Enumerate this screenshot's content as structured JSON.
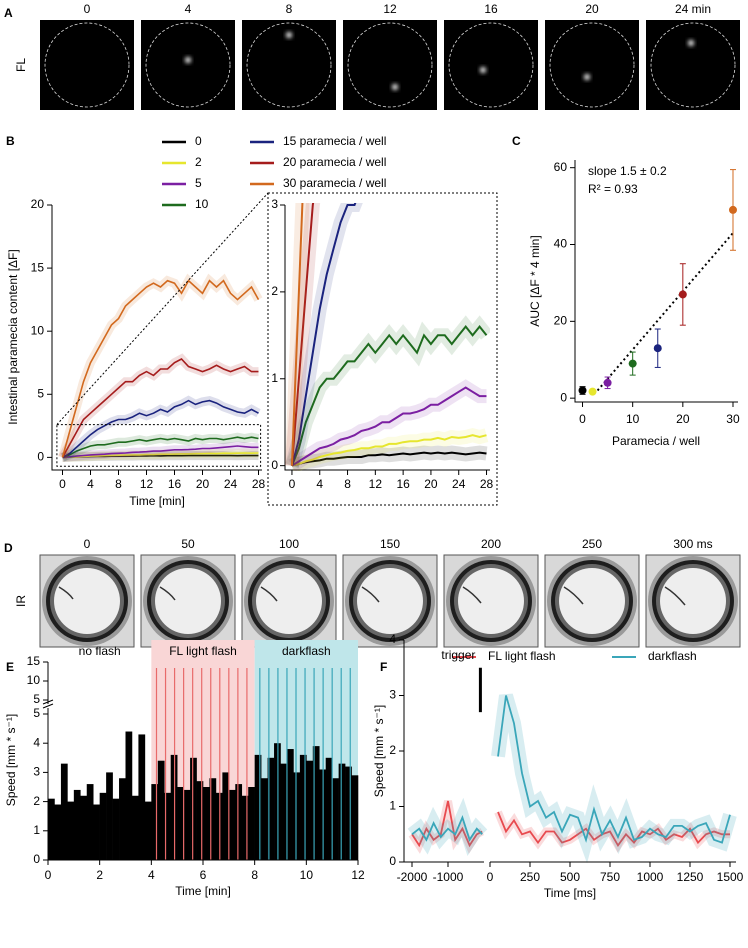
{
  "image_strips": [
    {
      "panel": "A",
      "row_label": "FL",
      "times": [
        "0",
        "4",
        "8",
        "12",
        "16",
        "20",
        "24 min"
      ]
    },
    {
      "panel": "D",
      "row_label": "IR",
      "times": [
        "0",
        "50",
        "100",
        "150",
        "200",
        "250",
        "300 ms"
      ]
    }
  ],
  "chart_data": [
    {
      "panel": "B",
      "type": "line",
      "xlabel": "Time [min]",
      "ylabel": "Intestinal paramecia content [ΔF]",
      "x": [
        0,
        1,
        2,
        3,
        4,
        5,
        6,
        7,
        8,
        9,
        10,
        11,
        12,
        13,
        14,
        15,
        16,
        17,
        18,
        19,
        20,
        21,
        22,
        23,
        24,
        25,
        26,
        27,
        28
      ],
      "xlim": [
        -1.5,
        28.5
      ],
      "ylim": [
        -1,
        20
      ],
      "xticks": [
        0,
        4,
        8,
        12,
        16,
        20,
        24,
        28
      ],
      "yticks": [
        0,
        5,
        10,
        15,
        20
      ],
      "series": [
        {
          "name": "0",
          "color": "#000000",
          "values": [
            0,
            0.02,
            0.04,
            0.05,
            0.06,
            0.08,
            0.08,
            0.09,
            0.1,
            0.1,
            0.1,
            0.12,
            0.12,
            0.13,
            0.12,
            0.13,
            0.14,
            0.13,
            0.14,
            0.15,
            0.14,
            0.15,
            0.14,
            0.15,
            0.14,
            0.13,
            0.14,
            0.15,
            0.14
          ]
        },
        {
          "name": "2",
          "color": "#e6e62e",
          "values": [
            0,
            0.02,
            0.05,
            0.07,
            0.1,
            0.12,
            0.14,
            0.15,
            0.17,
            0.18,
            0.2,
            0.2,
            0.22,
            0.22,
            0.25,
            0.25,
            0.27,
            0.28,
            0.28,
            0.3,
            0.3,
            0.32,
            0.3,
            0.33,
            0.32,
            0.33,
            0.35,
            0.33,
            0.35
          ]
        },
        {
          "name": "5",
          "color": "#7b1fa2",
          "values": [
            0,
            0.05,
            0.1,
            0.15,
            0.2,
            0.22,
            0.25,
            0.3,
            0.32,
            0.35,
            0.4,
            0.42,
            0.45,
            0.5,
            0.5,
            0.55,
            0.6,
            0.6,
            0.62,
            0.65,
            0.7,
            0.7,
            0.75,
            0.8,
            0.85,
            0.9,
            0.85,
            0.8,
            0.8
          ]
        },
        {
          "name": "10",
          "color": "#1e6b1e",
          "values": [
            0,
            0.2,
            0.5,
            0.7,
            0.9,
            1,
            1,
            1.1,
            1.2,
            1.2,
            1.3,
            1.4,
            1.3,
            1.4,
            1.5,
            1.4,
            1.5,
            1.4,
            1.3,
            1.5,
            1.4,
            1.5,
            1.5,
            1.4,
            1.5,
            1.6,
            1.5,
            1.6,
            1.5
          ]
        },
        {
          "name": "15 paramecia / well",
          "color": "#1a237e",
          "values": [
            0,
            0.3,
            0.8,
            1.3,
            1.8,
            2.2,
            2.5,
            2.8,
            3,
            3,
            3.2,
            3.5,
            3.3,
            3.5,
            3.8,
            3.6,
            4,
            4.2,
            4.5,
            4.2,
            4.4,
            4.5,
            4.3,
            4,
            3.8,
            3.6,
            3.5,
            3.8,
            3.5
          ]
        },
        {
          "name": "20 paramecia / well",
          "color": "#a51c1c",
          "values": [
            0,
            1,
            2,
            3,
            3.5,
            4,
            4.5,
            5,
            5.5,
            6,
            6,
            6.5,
            6.8,
            6.5,
            7,
            7,
            7.5,
            7.8,
            7.2,
            7,
            6.8,
            7,
            7.3,
            7,
            6.8,
            7,
            7.2,
            6.8,
            6.8
          ]
        },
        {
          "name": "30 paramecia / well",
          "color": "#d2691e",
          "values": [
            0,
            2,
            4,
            6,
            7.5,
            8.5,
            9.5,
            10.5,
            11,
            12,
            12.5,
            13,
            13.5,
            13.8,
            13.5,
            14,
            13.8,
            13,
            14,
            13.5,
            13,
            14,
            13.5,
            14,
            13,
            12.5,
            13,
            13.5,
            12.5
          ]
        }
      ],
      "inset": {
        "xlim": [
          -1,
          28.5
        ],
        "ylim": [
          -0.05,
          3
        ],
        "xticks": [
          0,
          4,
          8,
          12,
          16,
          20,
          24,
          28
        ],
        "yticks": [
          0,
          1,
          2,
          3
        ]
      }
    },
    {
      "panel": "C",
      "type": "scatter",
      "xlabel": "Paramecia / well",
      "ylabel": "AUC [ΔF * 4 min]",
      "x": [
        0,
        2,
        5,
        10,
        15,
        20,
        30
      ],
      "values": [
        2,
        1.7,
        4,
        9,
        13,
        27,
        49
      ],
      "errors": [
        1,
        0.5,
        1.5,
        3,
        5,
        8,
        10.5
      ],
      "colors": [
        "#000000",
        "#e6e62e",
        "#7b1fa2",
        "#1e6b1e",
        "#1a237e",
        "#a51c1c",
        "#d2691e"
      ],
      "xlim": [
        -1.5,
        31
      ],
      "ylim": [
        -1,
        62
      ],
      "xticks": [
        0,
        10,
        20,
        30
      ],
      "yticks": [
        0,
        20,
        40,
        60
      ],
      "fit_line": {
        "x": [
          3,
          30
        ],
        "y": [
          2,
          43
        ]
      },
      "annotations": [
        "slope 1.5 ± 0.2",
        "R² = 0.93"
      ]
    },
    {
      "panel": "E",
      "type": "bar",
      "xlabel": "Time [min]",
      "ylabel": "Speed [mm * s⁻¹]",
      "color": "#000000",
      "x": [
        0,
        0.25,
        0.5,
        0.75,
        1,
        1.25,
        1.5,
        1.75,
        2,
        2.25,
        2.5,
        2.75,
        3,
        3.25,
        3.5,
        3.75,
        4,
        4.25,
        4.5,
        4.75,
        5,
        5.25,
        5.5,
        5.75,
        6,
        6.25,
        6.5,
        6.75,
        7,
        7.25,
        7.5,
        7.75,
        8,
        8.25,
        8.5,
        8.75,
        9,
        9.25,
        9.5,
        9.75,
        10,
        10.25,
        10.5,
        10.75,
        11,
        11.25,
        11.5,
        11.75
      ],
      "values": [
        2.1,
        1.9,
        3.3,
        2.0,
        2.4,
        2.2,
        2.6,
        1.9,
        2.3,
        3.0,
        2.1,
        2.8,
        4.4,
        2.2,
        4.3,
        2.0,
        2.6,
        3.4,
        2.3,
        3.6,
        2.5,
        2.4,
        3.5,
        2.7,
        2.5,
        2.8,
        2.3,
        3.0,
        2.4,
        2.6,
        2.2,
        2.5,
        3.6,
        2.8,
        3.5,
        4.0,
        3.3,
        3.8,
        3.0,
        3.6,
        3.4,
        3.9,
        3.1,
        3.5,
        2.8,
        3.3,
        3.2,
        2.9
      ],
      "xlim": [
        0,
        12
      ],
      "xticks": [
        0,
        2,
        4,
        6,
        8,
        10,
        12
      ],
      "ylim": [
        0,
        5
      ],
      "yticks": [
        0,
        1,
        2,
        3,
        4,
        5
      ],
      "broken_ylim": [
        5,
        15
      ],
      "broken_yticks": [
        5,
        10,
        15
      ],
      "regions": [
        {
          "label": "no flash",
          "start": 0,
          "end": 4
        },
        {
          "label": "FL light flash",
          "start": 4,
          "end": 8,
          "color": "#f9d6d6",
          "line_color": "#e86a6a",
          "flash_times": [
            4.2,
            4.55,
            4.9,
            5.25,
            5.6,
            5.95,
            6.3,
            6.65,
            7.0,
            7.35,
            7.7
          ]
        },
        {
          "label": "darkflash",
          "start": 8,
          "end": 12,
          "color": "#bfe6ea",
          "line_color": "#3aa6b9",
          "flash_times": [
            8.2,
            8.55,
            8.9,
            9.25,
            9.6,
            9.95,
            10.3,
            10.65,
            11.0,
            11.35,
            11.7
          ]
        }
      ]
    },
    {
      "panel": "F",
      "type": "line",
      "xlabel": "Time [ms]",
      "ylabel": "Speed [mm * s⁻¹]",
      "x": [
        -2000,
        -1800,
        -1600,
        -1400,
        -1200,
        -1000,
        -800,
        -600,
        -400,
        -200,
        -50,
        0,
        50,
        100,
        150,
        200,
        250,
        300,
        350,
        400,
        450,
        500,
        550,
        600,
        650,
        700,
        750,
        800,
        850,
        900,
        950,
        1000,
        1050,
        1100,
        1150,
        1200,
        1250,
        1300,
        1350,
        1400,
        1450,
        1500
      ],
      "xlim": [
        -2000,
        1500
      ],
      "ylim": [
        0,
        4
      ],
      "xticks": [
        -2000,
        -1000,
        0,
        250,
        500,
        750,
        1000,
        1250,
        1500
      ],
      "yticks": [
        0,
        1,
        2,
        3,
        4
      ],
      "series": [
        {
          "name": "FL light flash",
          "color": "#e84a4f",
          "values": [
            0.5,
            0.3,
            0.6,
            0.4,
            0.5,
            1.1,
            0.4,
            0.6,
            0.3,
            0.5,
            0.55,
            null,
            0.9,
            0.55,
            0.75,
            0.5,
            0.55,
            0.35,
            0.55,
            0.55,
            0.35,
            0.4,
            0.5,
            0.6,
            0.4,
            0.5,
            0.55,
            0.3,
            0.5,
            0.35,
            0.55,
            0.5,
            0.6,
            0.4,
            0.5,
            0.45,
            0.6,
            0.35,
            0.5,
            0.55,
            0.5,
            0.5
          ]
        },
        {
          "name": "darkflash",
          "color": "#3aa6b9",
          "values": [
            0.5,
            0.6,
            0.4,
            0.7,
            0.45,
            0.6,
            0.5,
            0.8,
            0.4,
            0.6,
            0.5,
            null,
            1.9,
            3.0,
            2.5,
            1.6,
            1.0,
            1.1,
            0.8,
            0.9,
            0.55,
            0.85,
            0.8,
            0.4,
            0.95,
            0.5,
            0.75,
            0.45,
            0.8,
            0.4,
            0.45,
            0.6,
            0.5,
            0.45,
            0.65,
            0.65,
            0.55,
            0.65,
            0.7,
            0.4,
            0.35,
            0.85
          ]
        }
      ],
      "trigger": {
        "label": "trigger",
        "x": -100,
        "y": [
          2.7,
          3.5
        ]
      }
    }
  ]
}
